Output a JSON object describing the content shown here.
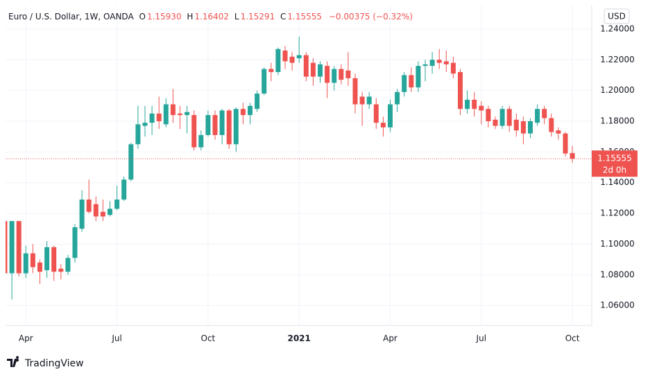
{
  "header": {
    "symbol": "Euro / U.S. Dollar, 1W, OANDA",
    "o_label": "O",
    "o": "1.15930",
    "h_label": "H",
    "h": "1.16402",
    "l_label": "L",
    "l": "1.15291",
    "c_label": "C",
    "c": "1.15555",
    "change": "−0.00375 (−0.32%)"
  },
  "currency": "USD",
  "brand": "TradingView",
  "chart_data": {
    "type": "candlestick",
    "categories": [
      null,
      null,
      null,
      "Apr",
      null,
      null,
      null,
      null,
      null,
      null,
      null,
      null,
      null,
      null,
      null,
      null,
      "Jul",
      null,
      null,
      null,
      null,
      null,
      null,
      null,
      null,
      null,
      null,
      null,
      null,
      "Oct",
      null,
      null,
      null,
      null,
      null,
      null,
      null,
      null,
      null,
      null,
      null,
      null,
      "2021",
      null,
      null,
      null,
      null,
      null,
      null,
      null,
      null,
      null,
      null,
      null,
      null,
      "Apr",
      null,
      null,
      null,
      null,
      null,
      null,
      null,
      null,
      null,
      null,
      null,
      null,
      "Jul",
      null,
      null,
      null,
      null,
      null,
      null,
      null,
      null,
      null,
      null,
      null,
      null,
      "Oct"
    ],
    "open": [
      1.115,
      1.081,
      1.115,
      1.081,
      1.094,
      1.088,
      1.083,
      1.098,
      1.084,
      1.082,
      1.091,
      1.11,
      1.129,
      1.126,
      1.121,
      1.119,
      1.123,
      1.129,
      1.142,
      1.165,
      1.177,
      1.179,
      1.185,
      1.178,
      1.191,
      1.185,
      1.184,
      1.184,
      1.163,
      1.171,
      1.184,
      1.171,
      1.187,
      1.165,
      1.188,
      1.184,
      1.188,
      1.198,
      1.214,
      1.212,
      1.226,
      1.222,
      1.221,
      1.223,
      1.218,
      1.209,
      1.216,
      1.205,
      1.214,
      1.213,
      1.208,
      1.196,
      1.191,
      1.191,
      1.179,
      1.176,
      1.191,
      1.199,
      1.21,
      1.202,
      1.216,
      1.216,
      1.22,
      1.219,
      1.218,
      1.212,
      1.188,
      1.194,
      1.19,
      1.188,
      1.181,
      1.177,
      1.188,
      1.181,
      1.18,
      1.172,
      1.179,
      1.188,
      1.182,
      1.174,
      1.172,
      1.1593
    ],
    "high": [
      1.1165,
      1.115,
      1.115,
      1.099,
      1.1,
      1.09,
      1.102,
      1.099,
      1.087,
      1.093,
      1.113,
      1.135,
      1.142,
      1.131,
      1.129,
      1.128,
      1.138,
      1.144,
      1.166,
      1.19,
      1.19,
      1.19,
      1.196,
      1.195,
      1.201,
      1.19,
      1.19,
      1.187,
      1.174,
      1.187,
      1.187,
      1.188,
      1.188,
      1.189,
      1.192,
      1.192,
      1.2,
      1.215,
      1.218,
      1.228,
      1.229,
      1.225,
      1.235,
      1.225,
      1.221,
      1.219,
      1.219,
      1.216,
      1.217,
      1.225,
      1.211,
      1.199,
      1.199,
      1.195,
      1.183,
      1.194,
      1.201,
      1.212,
      1.215,
      1.219,
      1.22,
      1.225,
      1.227,
      1.226,
      1.222,
      1.214,
      1.2,
      1.199,
      1.193,
      1.19,
      1.183,
      1.19,
      1.19,
      1.185,
      1.183,
      1.182,
      1.191,
      1.19,
      1.185,
      1.176,
      1.173,
      1.16402
    ],
    "low": [
      1.08,
      1.064,
      1.079,
      1.078,
      1.081,
      1.074,
      1.078,
      1.076,
      1.077,
      1.08,
      1.088,
      1.108,
      1.12,
      1.115,
      1.115,
      1.118,
      1.122,
      1.128,
      1.141,
      1.162,
      1.17,
      1.171,
      1.175,
      1.176,
      1.179,
      1.175,
      1.172,
      1.161,
      1.161,
      1.17,
      1.168,
      1.165,
      1.162,
      1.16,
      1.178,
      1.178,
      1.186,
      1.197,
      1.206,
      1.21,
      1.214,
      1.213,
      1.218,
      1.206,
      1.203,
      1.205,
      1.195,
      1.2,
      1.204,
      1.203,
      1.185,
      1.177,
      1.188,
      1.175,
      1.17,
      1.173,
      1.186,
      1.196,
      1.199,
      1.199,
      1.206,
      1.211,
      1.214,
      1.212,
      1.208,
      1.184,
      1.185,
      1.183,
      1.178,
      1.176,
      1.175,
      1.175,
      1.173,
      1.17,
      1.165,
      1.169,
      1.177,
      1.178,
      1.17,
      1.168,
      1.157,
      1.15291
    ],
    "close": [
      1.081,
      1.115,
      1.081,
      1.094,
      1.085,
      1.082,
      1.098,
      1.082,
      1.082,
      1.091,
      1.111,
      1.129,
      1.121,
      1.118,
      1.118,
      1.123,
      1.129,
      1.142,
      1.165,
      1.178,
      1.179,
      1.185,
      1.18,
      1.191,
      1.184,
      1.184,
      1.186,
      1.163,
      1.171,
      1.184,
      1.171,
      1.187,
      1.165,
      1.188,
      1.184,
      1.19,
      1.198,
      1.214,
      1.212,
      1.227,
      1.219,
      1.218,
      1.223,
      1.209,
      1.209,
      1.217,
      1.205,
      1.214,
      1.207,
      1.208,
      1.191,
      1.191,
      1.196,
      1.179,
      1.176,
      1.191,
      1.199,
      1.21,
      1.202,
      1.216,
      1.217,
      1.22,
      1.218,
      1.217,
      1.211,
      1.188,
      1.194,
      1.188,
      1.187,
      1.18,
      1.177,
      1.188,
      1.177,
      1.174,
      1.172,
      1.18,
      1.188,
      1.182,
      1.173,
      1.172,
      1.159,
      1.15555
    ],
    "up_color": "#26a69a",
    "down_color": "#ef5350",
    "ylim": [
      1.047,
      1.2553
    ],
    "yticks": [
      {
        "value": 1.06,
        "label": "1.06000"
      },
      {
        "value": 1.08,
        "label": "1.08000"
      },
      {
        "value": 1.1,
        "label": "1.10000"
      },
      {
        "value": 1.12,
        "label": "1.12000"
      },
      {
        "value": 1.14,
        "label": "1.14000"
      },
      {
        "value": 1.16,
        "label": "1.16000"
      },
      {
        "value": 1.18,
        "label": "1.18000"
      },
      {
        "value": 1.2,
        "label": "1.20000"
      },
      {
        "value": 1.22,
        "label": "1.22000"
      },
      {
        "value": 1.24,
        "label": "1.24000"
      }
    ],
    "grid": true,
    "last_price_label": "1.15555",
    "countdown": "2d 0h"
  }
}
